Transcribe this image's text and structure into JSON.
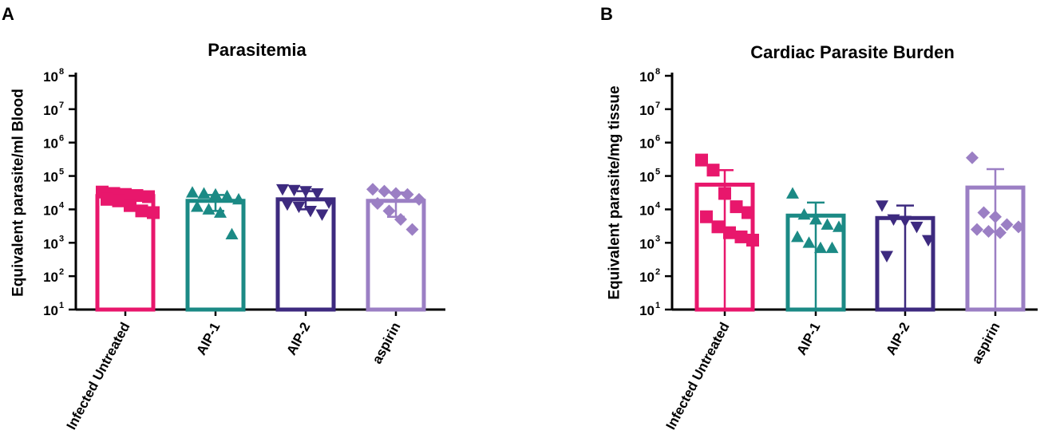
{
  "figure": {
    "colors": {
      "Infected Untreated": "#e8176c",
      "AIP-1": "#1b8a85",
      "AIP-2": "#3d2a7f",
      "aspirin": "#9b7fc4",
      "axis": "#000000"
    }
  },
  "chart_data": [
    {
      "panel": "A",
      "type": "bar",
      "title": "Parasitemia",
      "xlabel": "",
      "ylabel": "Equivalent parasite/ml Blood",
      "yscale": "log10",
      "ylim": [
        10,
        100000000
      ],
      "yticks": [
        {
          "base": "10",
          "exp": "1",
          "value": 10
        },
        {
          "base": "10",
          "exp": "2",
          "value": 100
        },
        {
          "base": "10",
          "exp": "3",
          "value": 1000
        },
        {
          "base": "10",
          "exp": "4",
          "value": 10000
        },
        {
          "base": "10",
          "exp": "5",
          "value": 100000
        },
        {
          "base": "10",
          "exp": "6",
          "value": 1000000
        },
        {
          "base": "10",
          "exp": "7",
          "value": 10000000
        },
        {
          "base": "10",
          "exp": "8",
          "value": 100000000
        }
      ],
      "categories": [
        "Infected Untreated",
        "AIP-1",
        "AIP-2",
        "aspirin"
      ],
      "groups": [
        {
          "name": "Infected Untreated",
          "marker": "square",
          "mean": 25000,
          "err_low": 15000,
          "err_high": 35000,
          "points": [
            33000,
            30000,
            28000,
            26000,
            24000,
            20000,
            18000,
            13000,
            9000,
            8000
          ]
        },
        {
          "name": "AIP-1",
          "marker": "triangle-up",
          "mean": 18000,
          "err_low": 9000,
          "err_high": 27000,
          "points": [
            32000,
            30000,
            28000,
            25000,
            20000,
            12000,
            10000,
            8000,
            1800
          ]
        },
        {
          "name": "AIP-2",
          "marker": "triangle-down",
          "mean": 20000,
          "err_low": 10000,
          "err_high": 35000,
          "points": [
            40000,
            38000,
            35000,
            30000,
            16000,
            14000,
            12000,
            9000,
            7000
          ]
        },
        {
          "name": "aspirin",
          "marker": "diamond",
          "mean": 18000,
          "err_low": 6000,
          "err_high": 32000,
          "points": [
            40000,
            35000,
            30000,
            28000,
            20000,
            15000,
            9000,
            5000,
            2500
          ]
        }
      ]
    },
    {
      "panel": "B",
      "type": "bar",
      "title": "Cardiac Parasite  Burden",
      "xlabel": "",
      "ylabel": "Equivalent parasite/mg tissue",
      "yscale": "log10",
      "ylim": [
        10,
        100000000
      ],
      "yticks": [
        {
          "base": "10",
          "exp": "1",
          "value": 10
        },
        {
          "base": "10",
          "exp": "2",
          "value": 100
        },
        {
          "base": "10",
          "exp": "3",
          "value": 1000
        },
        {
          "base": "10",
          "exp": "4",
          "value": 10000
        },
        {
          "base": "10",
          "exp": "5",
          "value": 100000
        },
        {
          "base": "10",
          "exp": "6",
          "value": 1000000
        },
        {
          "base": "10",
          "exp": "7",
          "value": 10000000
        },
        {
          "base": "10",
          "exp": "8",
          "value": 100000000
        }
      ],
      "categories": [
        "Infected Untreated",
        "AIP-1",
        "AIP-2",
        "aspirin"
      ],
      "groups": [
        {
          "name": "Infected Untreated",
          "marker": "square",
          "mean": 55000,
          "err_low": 10,
          "err_high": 150000,
          "points": [
            300000,
            150000,
            30000,
            12000,
            8000,
            6000,
            3000,
            2000,
            1500,
            1200
          ]
        },
        {
          "name": "AIP-1",
          "marker": "triangle-up",
          "mean": 6500,
          "err_low": 10,
          "err_high": 16000,
          "points": [
            30000,
            7000,
            5000,
            3500,
            3000,
            1500,
            1000,
            700,
            700
          ]
        },
        {
          "name": "AIP-2",
          "marker": "triangle-down",
          "mean": 5500,
          "err_low": 10,
          "err_high": 13000,
          "points": [
            13000,
            5000,
            4500,
            3000,
            1200,
            400
          ]
        },
        {
          "name": "aspirin",
          "marker": "diamond",
          "mean": 45000,
          "err_low": 10,
          "err_high": 160000,
          "points": [
            350000,
            8000,
            6000,
            3500,
            3000,
            2500,
            2200,
            2000
          ]
        }
      ]
    }
  ]
}
